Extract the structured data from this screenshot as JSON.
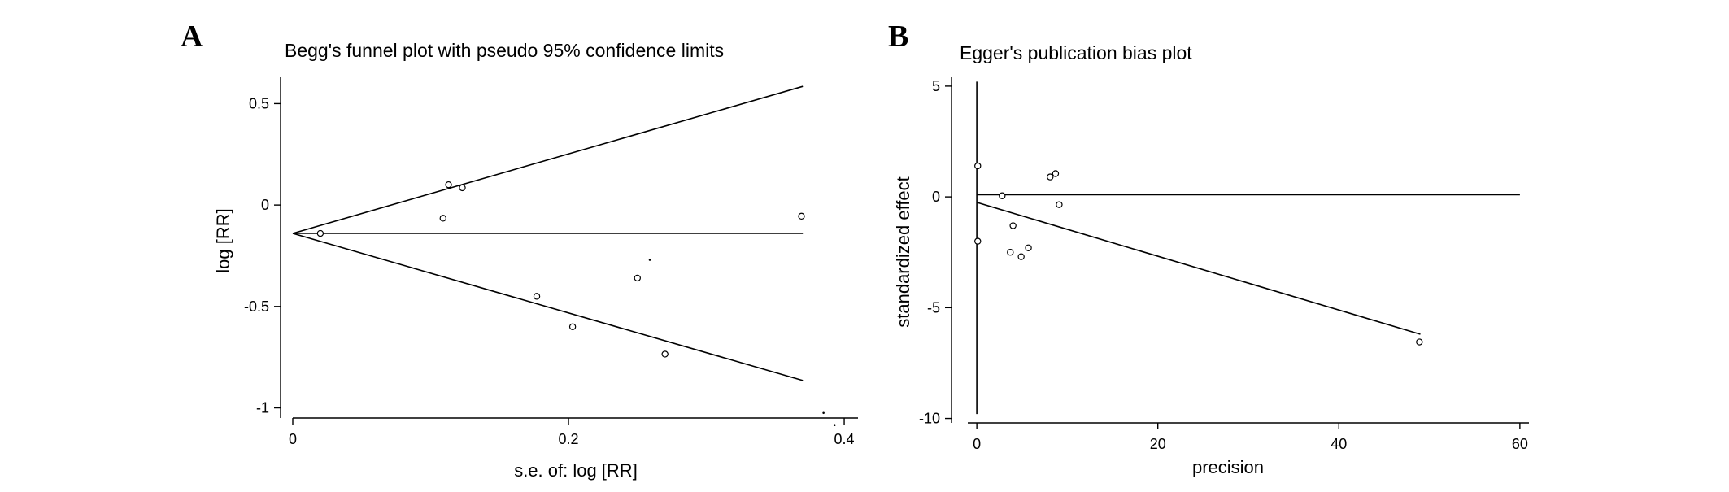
{
  "chart_data": [
    {
      "panel": "A",
      "type": "scatter",
      "title": "Begg's funnel plot with pseudo 95% confidence limits",
      "xlabel": "s.e. of: log [RR]",
      "ylabel": "log [RR]",
      "xlim": [
        0,
        0.41
      ],
      "ylim": [
        -1.05,
        0.63
      ],
      "xticks": [
        {
          "value": 0,
          "label": "0"
        },
        {
          "value": 0.2,
          "label": "0.2"
        },
        {
          "value": 0.4,
          "label": "0.4"
        }
      ],
      "yticks": [
        {
          "value": 0.5,
          "label": "0.5"
        },
        {
          "value": 0,
          "label": "0"
        },
        {
          "value": -0.5,
          "label": "-0.5"
        },
        {
          "value": -1,
          "label": "-1"
        }
      ],
      "pooled_estimate": -0.14,
      "lines": [
        {
          "name": "pooled",
          "points": [
            [
              0,
              -0.14
            ],
            [
              0.37,
              -0.14
            ]
          ]
        },
        {
          "name": "upper-limit",
          "points": [
            [
              0,
              -0.14
            ],
            [
              0.37,
              0.585
            ]
          ]
        },
        {
          "name": "lower-limit",
          "points": [
            [
              0,
              -0.14
            ],
            [
              0.37,
              -0.865
            ]
          ]
        }
      ],
      "points": [
        {
          "x": 0.02,
          "y": -0.14
        },
        {
          "x": 0.109,
          "y": -0.065
        },
        {
          "x": 0.113,
          "y": 0.1
        },
        {
          "x": 0.123,
          "y": 0.085
        },
        {
          "x": 0.177,
          "y": -0.45
        },
        {
          "x": 0.203,
          "y": -0.6
        },
        {
          "x": 0.25,
          "y": -0.36
        },
        {
          "x": 0.27,
          "y": -0.735
        },
        {
          "x": 0.369,
          "y": -0.055
        }
      ],
      "small_dots": [
        {
          "x": 0.259,
          "y": -0.27
        },
        {
          "x": 0.385,
          "y": -1.025
        },
        {
          "x": 0.393,
          "y": -1.085
        }
      ]
    },
    {
      "panel": "B",
      "type": "scatter",
      "title": "Egger's publication bias plot",
      "xlabel": "precision",
      "ylabel": "standardized effect",
      "xlim": [
        -1,
        61
      ],
      "ylim": [
        -10.2,
        5.4
      ],
      "xticks": [
        {
          "value": 0,
          "label": "0"
        },
        {
          "value": 20,
          "label": "20"
        },
        {
          "value": 40,
          "label": "40"
        },
        {
          "value": 60,
          "label": "60"
        }
      ],
      "yticks": [
        {
          "value": 5,
          "label": "5"
        },
        {
          "value": 0,
          "label": "0"
        },
        {
          "value": -5,
          "label": "-5"
        },
        {
          "value": -10,
          "label": "-10"
        }
      ],
      "lines": [
        {
          "name": "vertical-reference",
          "points": [
            [
              0,
              -9.8
            ],
            [
              0,
              5.2
            ]
          ]
        },
        {
          "name": "horizontal-reference",
          "points": [
            [
              0,
              0.1
            ],
            [
              60,
              0.1
            ]
          ]
        },
        {
          "name": "regression-line",
          "points": [
            [
              0,
              -0.25
            ],
            [
              49,
              -6.2
            ]
          ]
        }
      ],
      "points": [
        {
          "x": 0.1,
          "y": 1.4
        },
        {
          "x": 0.1,
          "y": -2.0
        },
        {
          "x": 2.8,
          "y": 0.05
        },
        {
          "x": 4.0,
          "y": -1.3
        },
        {
          "x": 3.7,
          "y": -2.5
        },
        {
          "x": 4.9,
          "y": -2.7
        },
        {
          "x": 5.7,
          "y": -2.3
        },
        {
          "x": 8.1,
          "y": 0.9
        },
        {
          "x": 8.7,
          "y": 1.05
        },
        {
          "x": 9.1,
          "y": -0.35
        },
        {
          "x": 48.9,
          "y": -6.55
        }
      ]
    }
  ]
}
